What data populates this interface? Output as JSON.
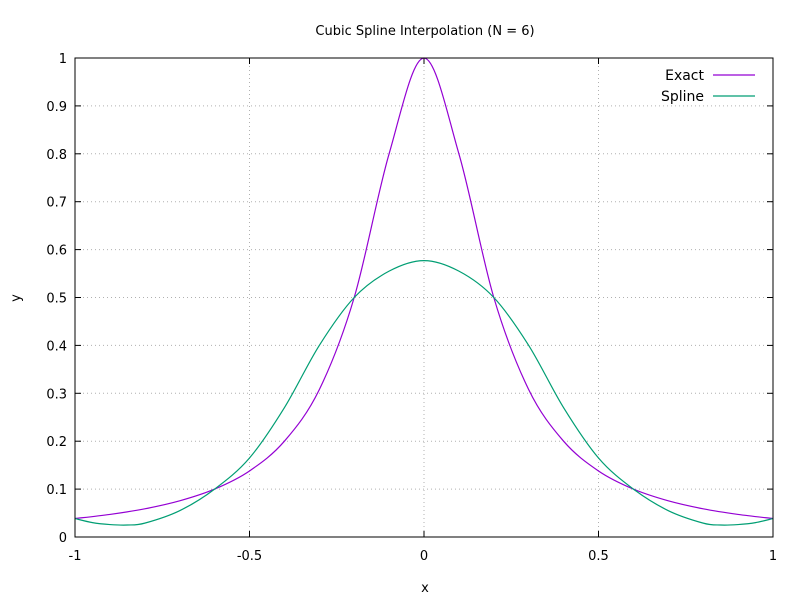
{
  "chart_data": {
    "type": "line",
    "title": "Cubic Spline Interpolation (N = 6)",
    "xlabel": "x",
    "ylabel": "y",
    "xlim": [
      -1,
      1
    ],
    "ylim": [
      0,
      1
    ],
    "xticks": [
      -1,
      -0.5,
      0,
      0.5,
      1
    ],
    "xtick_labels": [
      "-1",
      "-0.5",
      "0",
      "0.5",
      "1"
    ],
    "yticks": [
      0,
      0.1,
      0.2,
      0.3,
      0.4,
      0.5,
      0.6,
      0.7,
      0.8,
      0.9,
      1
    ],
    "ytick_labels": [
      "0",
      "0.1",
      "0.2",
      "0.3",
      "0.4",
      "0.5",
      "0.6",
      "0.7",
      "0.8",
      "0.9",
      "1"
    ],
    "grid": true,
    "legend_position": "top-right",
    "series": [
      {
        "name": "Exact",
        "color": "#9400d3",
        "x": [
          -1,
          -0.9,
          -0.8,
          -0.7,
          -0.6,
          -0.5,
          -0.4,
          -0.3,
          -0.2,
          -0.1,
          0,
          0.1,
          0.2,
          0.3,
          0.4,
          0.5,
          0.6,
          0.7,
          0.8,
          0.9,
          1
        ],
        "y": [
          0.0385,
          0.0471,
          0.0588,
          0.0755,
          0.1,
          0.1379,
          0.2,
          0.3077,
          0.5,
          0.8,
          1.0,
          0.8,
          0.5,
          0.3077,
          0.2,
          0.1379,
          0.1,
          0.0755,
          0.0588,
          0.0471,
          0.0385
        ]
      },
      {
        "name": "Spline",
        "color": "#009e73",
        "x": [
          -1,
          -0.95,
          -0.9,
          -0.85,
          -0.8,
          -0.7,
          -0.6,
          -0.5,
          -0.4,
          -0.3,
          -0.2,
          -0.1,
          0,
          0.1,
          0.2,
          0.3,
          0.4,
          0.5,
          0.6,
          0.7,
          0.8,
          0.85,
          0.9,
          0.95,
          1
        ],
        "y": [
          0.0385,
          0.03,
          0.026,
          0.025,
          0.029,
          0.055,
          0.1,
          0.165,
          0.27,
          0.4,
          0.5,
          0.555,
          0.577,
          0.555,
          0.5,
          0.4,
          0.27,
          0.165,
          0.1,
          0.055,
          0.029,
          0.025,
          0.026,
          0.03,
          0.0385
        ]
      }
    ]
  }
}
